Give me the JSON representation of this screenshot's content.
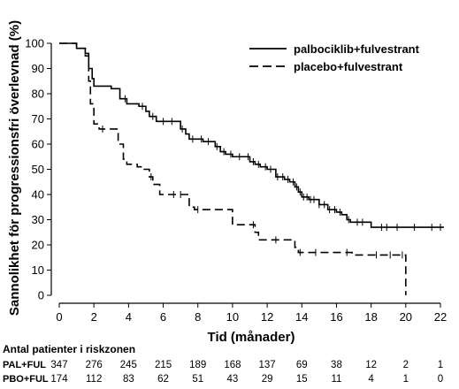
{
  "chart_data": {
    "type": "line",
    "title": "",
    "xlabel": "Tid (månader)",
    "ylabel": "Sannolikhet för progressionsfri överlevnad (%)",
    "xlim": [
      0,
      22
    ],
    "ylim": [
      0,
      100
    ],
    "x_ticks": [
      "0",
      "2",
      "4",
      "6",
      "8",
      "10",
      "12",
      "14",
      "16",
      "18",
      "20",
      "22"
    ],
    "y_ticks": [
      "0",
      "10",
      "20",
      "30",
      "40",
      "50",
      "60",
      "70",
      "80",
      "90",
      "100"
    ],
    "grid": false,
    "legend_position": "top-right",
    "series": [
      {
        "name": "palbociklib+fulvestrant",
        "line_style": "solid",
        "color": "#000000",
        "points": [
          [
            0,
            100
          ],
          [
            0.5,
            100
          ],
          [
            1.0,
            98
          ],
          [
            1.5,
            96
          ],
          [
            1.7,
            90
          ],
          [
            1.9,
            86
          ],
          [
            2.0,
            83
          ],
          [
            2.9,
            83
          ],
          [
            3.0,
            82
          ],
          [
            3.5,
            78
          ],
          [
            3.9,
            76
          ],
          [
            4.6,
            75
          ],
          [
            5.0,
            73
          ],
          [
            5.2,
            71
          ],
          [
            5.6,
            69
          ],
          [
            6.8,
            69
          ],
          [
            7.0,
            66
          ],
          [
            7.3,
            64
          ],
          [
            7.5,
            62
          ],
          [
            8.3,
            61
          ],
          [
            8.7,
            61
          ],
          [
            9.0,
            59
          ],
          [
            9.3,
            57
          ],
          [
            9.6,
            56
          ],
          [
            10.0,
            55
          ],
          [
            10.8,
            55
          ],
          [
            11.0,
            53
          ],
          [
            11.3,
            52
          ],
          [
            11.6,
            51
          ],
          [
            12.0,
            50
          ],
          [
            12.5,
            47
          ],
          [
            13.0,
            46
          ],
          [
            13.3,
            45
          ],
          [
            13.6,
            43
          ],
          [
            13.8,
            41
          ],
          [
            14.0,
            39
          ],
          [
            14.4,
            38
          ],
          [
            15.0,
            36
          ],
          [
            15.5,
            34
          ],
          [
            16.0,
            33
          ],
          [
            16.3,
            32
          ],
          [
            16.6,
            30
          ],
          [
            16.8,
            29
          ],
          [
            17.7,
            29
          ],
          [
            18.0,
            27
          ],
          [
            22.2,
            27
          ]
        ],
        "censor_x": [
          3.8,
          4.8,
          5.4,
          6.0,
          6.5,
          7.1,
          7.7,
          8.2,
          8.6,
          9.1,
          9.5,
          9.9,
          10.4,
          10.9,
          11.2,
          11.5,
          11.9,
          12.2,
          12.6,
          12.9,
          13.2,
          13.5,
          13.7,
          13.9,
          14.1,
          14.3,
          14.5,
          14.7,
          15.0,
          15.3,
          15.6,
          15.9,
          16.2,
          16.7,
          17.2,
          17.5,
          18.6,
          18.9,
          19.5,
          20.5,
          21.5,
          22.0
        ]
      },
      {
        "name": "placebo+fulvestrant",
        "line_style": "dashed",
        "color": "#000000",
        "points": [
          [
            0,
            100
          ],
          [
            0.5,
            100
          ],
          [
            1.0,
            98
          ],
          [
            1.5,
            95
          ],
          [
            1.7,
            85
          ],
          [
            1.8,
            76
          ],
          [
            2.0,
            68
          ],
          [
            2.3,
            66
          ],
          [
            3.2,
            66
          ],
          [
            3.4,
            60
          ],
          [
            3.7,
            54
          ],
          [
            3.9,
            52
          ],
          [
            4.5,
            51
          ],
          [
            4.9,
            50
          ],
          [
            5.2,
            47
          ],
          [
            5.4,
            44
          ],
          [
            5.8,
            40
          ],
          [
            7.3,
            40
          ],
          [
            7.5,
            35
          ],
          [
            7.8,
            34
          ],
          [
            9.8,
            34
          ],
          [
            10.0,
            28
          ],
          [
            11.0,
            28
          ],
          [
            11.3,
            25
          ],
          [
            11.5,
            22
          ],
          [
            13.2,
            22
          ],
          [
            13.6,
            19
          ],
          [
            13.8,
            17
          ],
          [
            16.7,
            17
          ],
          [
            16.9,
            16
          ],
          [
            20.0,
            16
          ],
          [
            20.0,
            0
          ]
        ],
        "censor_x": [
          2.5,
          5.3,
          6.6,
          7.0,
          8.0,
          11.2,
          12.5,
          13.9,
          14.8,
          16.6,
          18.3,
          19.1,
          19.8
        ]
      }
    ],
    "risk_table": {
      "title": "Antal patienter i riskzonen",
      "rows": [
        {
          "label": "PAL+FUL",
          "values": [
            "347",
            "276",
            "245",
            "215",
            "189",
            "168",
            "137",
            "69",
            "38",
            "12",
            "2",
            "1"
          ]
        },
        {
          "label": "PBO+FUL",
          "values": [
            "174",
            "112",
            "83",
            "62",
            "51",
            "43",
            "29",
            "15",
            "11",
            "4",
            "1",
            "0"
          ]
        }
      ]
    }
  }
}
